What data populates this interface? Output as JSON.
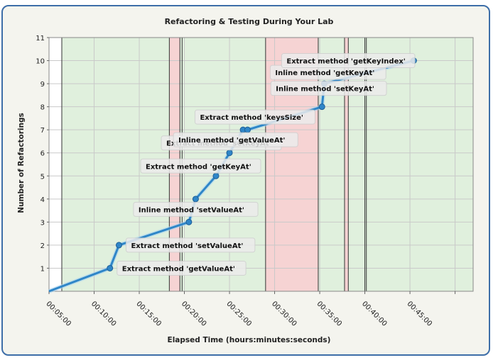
{
  "chart_data": {
    "type": "line",
    "title": "Refactoring & Testing During Your Lab",
    "xlabel": "Elapsed Time (hours:minutes:seconds)",
    "ylabel": "Number of Refactorings",
    "ylim": [
      0,
      11
    ],
    "xlim_seconds": [
      0,
      2820
    ],
    "x_ticks": [
      {
        "t": 300,
        "label": "00:05:00"
      },
      {
        "t": 600,
        "label": "00:10:00"
      },
      {
        "t": 900,
        "label": "00:15:00"
      },
      {
        "t": 1200,
        "label": "00:20:00"
      },
      {
        "t": 1500,
        "label": "00:25:00"
      },
      {
        "t": 1800,
        "label": "00:30:00"
      },
      {
        "t": 2100,
        "label": "00:35:00"
      },
      {
        "t": 2400,
        "label": "00:40:00"
      },
      {
        "t": 2700,
        "label": "00:45:00"
      }
    ],
    "y_ticks": [
      1,
      2,
      3,
      4,
      5,
      6,
      7,
      8,
      9,
      10,
      11
    ],
    "grid": true,
    "bands": [
      {
        "start": 85,
        "end": 800,
        "color": "#e0f0dd"
      },
      {
        "start": 800,
        "end": 870,
        "color": "#f6d3d3"
      },
      {
        "start": 870,
        "end": 885,
        "color": "#e0f0dd"
      },
      {
        "start": 885,
        "end": 1440,
        "color": "#e0f0dd"
      },
      {
        "start": 1440,
        "end": 1790,
        "color": "#f6d3d3"
      },
      {
        "start": 1790,
        "end": 1965,
        "color": "#e0f0dd"
      },
      {
        "start": 1965,
        "end": 1990,
        "color": "#f6d3d3"
      },
      {
        "start": 1990,
        "end": 2100,
        "color": "#e0f0dd"
      },
      {
        "start": 2100,
        "end": 2820,
        "color": "#e0f0dd"
      }
    ],
    "band_lines": [
      85,
      800,
      870,
      885,
      1440,
      1790,
      1965,
      1990,
      2100,
      2110
    ],
    "series": [
      {
        "color": "#2f86c8",
        "points": [
          {
            "t": 0,
            "y": 0
          },
          {
            "t": 405,
            "y": 1,
            "label": "Extract method 'getValueAt'"
          },
          {
            "t": 465,
            "y": 2,
            "label": "Extract method 'setValueAt'"
          },
          {
            "t": 930,
            "y": 3,
            "label": "Inline method 'setValueAt'"
          },
          {
            "t": 975,
            "y": 4
          },
          {
            "t": 1110,
            "y": 5,
            "label": "Extract method 'getKeyAt'"
          },
          {
            "t": 1200,
            "y": 6,
            "label": "Extract method 'setKeyAt'"
          },
          {
            "t": 1290,
            "y": 7,
            "label": "Inline method 'getValueAt'"
          },
          {
            "t": 1320,
            "y": 7,
            "label": "Extract method 'keysSize'"
          },
          {
            "t": 1815,
            "y": 8,
            "label": "Inline method 'setKeyAt'"
          },
          {
            "t": 1830,
            "y": 9,
            "label": "Inline method 'getKeyAt'"
          },
          {
            "t": 2425,
            "y": 10,
            "label": "Extract method 'getKeyIndex'"
          }
        ]
      }
    ]
  }
}
